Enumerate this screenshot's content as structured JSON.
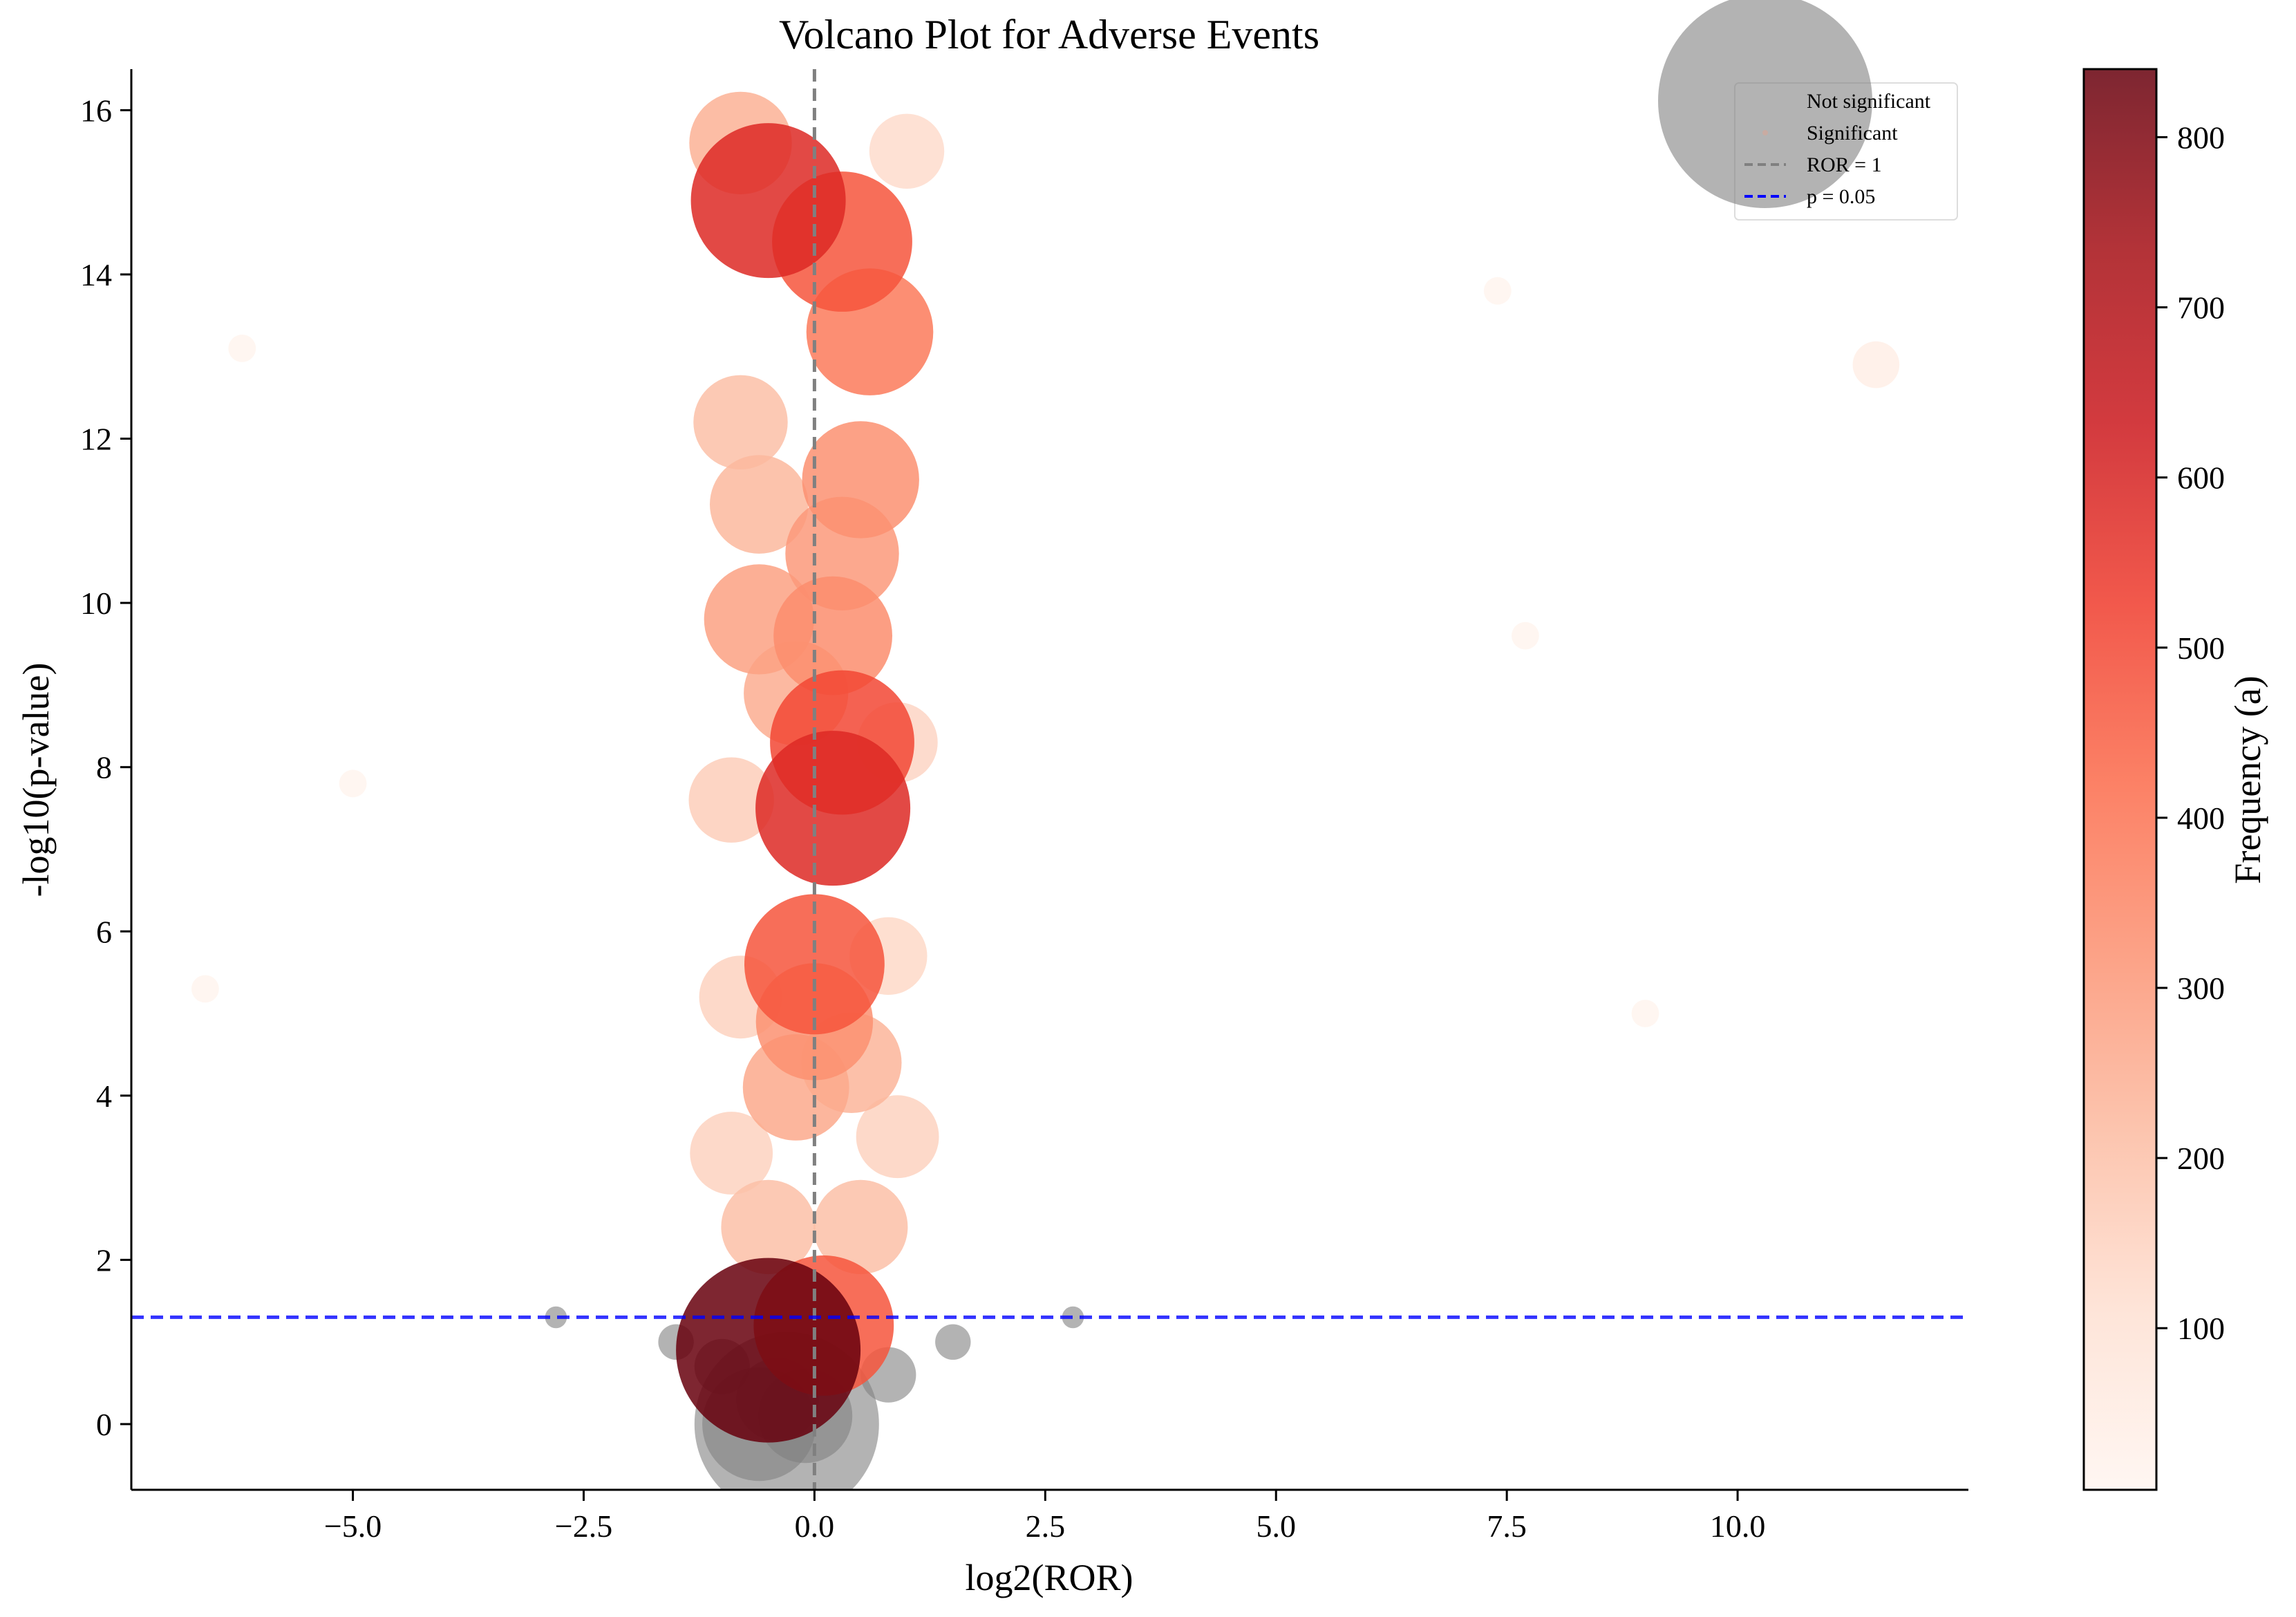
{
  "chart_data": {
    "type": "scatter",
    "title": "Volcano Plot for Adverse Events",
    "xlabel": "log2(ROR)",
    "ylabel": "-log10(p-value)",
    "xlim": [
      -7.4,
      12.5
    ],
    "ylim": [
      -0.8,
      16.5
    ],
    "x_ticks": [
      -5.0,
      -2.5,
      0.0,
      2.5,
      5.0,
      7.5,
      10.0
    ],
    "x_tick_labels": [
      "−5.0",
      "−2.5",
      "0.0",
      "2.5",
      "5.0",
      "7.5",
      "10.0"
    ],
    "y_ticks": [
      0,
      2,
      4,
      6,
      8,
      10,
      12,
      14,
      16
    ],
    "y_tick_labels": [
      "0",
      "2",
      "4",
      "6",
      "8",
      "10",
      "12",
      "14",
      "16"
    ],
    "colorbar": {
      "label": "Frequency (a)",
      "range": [
        5,
        840
      ],
      "ticks": [
        100,
        200,
        300,
        400,
        500,
        600,
        700,
        800
      ],
      "tick_labels": [
        "100",
        "200",
        "300",
        "400",
        "500",
        "600",
        "700",
        "800"
      ],
      "colormap": [
        "#fff5f0",
        "#fee0d2",
        "#fcbba1",
        "#fc9272",
        "#fb6a4a",
        "#ef3b2c",
        "#cb181d",
        "#a50f15",
        "#67000d"
      ]
    },
    "reference_lines": [
      {
        "label": "ROR = 1",
        "orientation": "vertical",
        "value": 0,
        "color": "#808080"
      },
      {
        "label": "p = 0.05",
        "orientation": "horizontal",
        "value": 1.301,
        "color": "#0000ff"
      }
    ],
    "legend": {
      "placement": "top-right",
      "entries": [
        "Not significant",
        "Significant",
        "ROR = 1",
        "p = 0.05"
      ]
    },
    "colors": {
      "not_significant": "#808080"
    },
    "series": [
      {
        "name": "Not significant",
        "points": [
          {
            "x": -0.3,
            "y": 0.0,
            "freq": 840
          },
          {
            "x": -0.6,
            "y": 0.0,
            "freq": 300
          },
          {
            "x": -0.1,
            "y": 0.1,
            "freq": 200
          },
          {
            "x": -0.4,
            "y": 0.3,
            "freq": 150
          },
          {
            "x": -1.0,
            "y": 0.7,
            "freq": 60
          },
          {
            "x": 0.8,
            "y": 0.6,
            "freq": 60
          },
          {
            "x": -1.5,
            "y": 1.0,
            "freq": 20
          },
          {
            "x": 1.5,
            "y": 1.0,
            "freq": 20
          },
          {
            "x": -2.8,
            "y": 1.3,
            "freq": 5
          },
          {
            "x": 2.8,
            "y": 1.3,
            "freq": 5
          }
        ]
      },
      {
        "name": "Significant",
        "points": [
          {
            "x": -0.5,
            "y": 0.9,
            "freq": 840
          },
          {
            "x": 0.1,
            "y": 1.2,
            "freq": 470
          },
          {
            "x": -0.5,
            "y": 14.9,
            "freq": 580
          },
          {
            "x": 0.3,
            "y": 14.4,
            "freq": 470
          },
          {
            "x": 0.6,
            "y": 13.3,
            "freq": 380
          },
          {
            "x": -0.8,
            "y": 15.6,
            "freq": 240
          },
          {
            "x": 1.0,
            "y": 15.5,
            "freq": 120
          },
          {
            "x": -0.8,
            "y": 12.2,
            "freq": 200
          },
          {
            "x": -0.6,
            "y": 11.2,
            "freq": 220
          },
          {
            "x": 0.5,
            "y": 11.5,
            "freq": 320
          },
          {
            "x": 0.3,
            "y": 10.6,
            "freq": 300
          },
          {
            "x": -0.6,
            "y": 9.8,
            "freq": 280
          },
          {
            "x": 0.2,
            "y": 9.6,
            "freq": 330
          },
          {
            "x": -0.2,
            "y": 8.9,
            "freq": 250
          },
          {
            "x": 0.3,
            "y": 8.3,
            "freq": 500
          },
          {
            "x": 0.2,
            "y": 7.5,
            "freq": 580
          },
          {
            "x": -0.9,
            "y": 7.6,
            "freq": 160
          },
          {
            "x": 0.9,
            "y": 8.3,
            "freq": 140
          },
          {
            "x": 0.0,
            "y": 5.6,
            "freq": 470
          },
          {
            "x": 0.0,
            "y": 4.9,
            "freq": 320
          },
          {
            "x": -0.2,
            "y": 4.1,
            "freq": 260
          },
          {
            "x": 0.4,
            "y": 4.4,
            "freq": 230
          },
          {
            "x": -0.8,
            "y": 5.2,
            "freq": 150
          },
          {
            "x": 0.8,
            "y": 5.7,
            "freq": 130
          },
          {
            "x": -0.9,
            "y": 3.3,
            "freq": 150
          },
          {
            "x": 0.9,
            "y": 3.5,
            "freq": 150
          },
          {
            "x": -0.5,
            "y": 2.4,
            "freq": 200
          },
          {
            "x": 0.5,
            "y": 2.4,
            "freq": 200
          },
          {
            "x": 11.5,
            "y": 12.9,
            "freq": 40
          },
          {
            "x": -6.2,
            "y": 13.1,
            "freq": 10
          },
          {
            "x": 7.4,
            "y": 13.8,
            "freq": 10
          },
          {
            "x": -5.0,
            "y": 7.8,
            "freq": 10
          },
          {
            "x": -6.6,
            "y": 5.3,
            "freq": 10
          },
          {
            "x": 9.0,
            "y": 5.0,
            "freq": 10
          },
          {
            "x": 7.7,
            "y": 9.6,
            "freq": 10
          }
        ]
      }
    ]
  }
}
